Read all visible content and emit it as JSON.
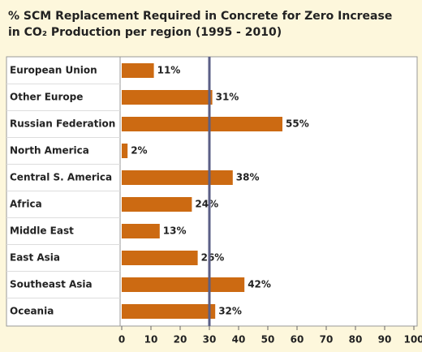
{
  "chart_data": {
    "type": "bar",
    "orientation": "horizontal",
    "title": [
      "% SCM Replacement Required in Concrete for Zero Increase",
      "in CO₂ Production per region (1995 - 2010)"
    ],
    "categories": [
      "European Union",
      "Other Europe",
      "Russian Federation",
      "North America",
      "Central S. America",
      "Africa",
      "Middle East",
      "East Asia",
      "Southeast Asia",
      "Oceania"
    ],
    "values": [
      11,
      31,
      55,
      2,
      38,
      24,
      13,
      26,
      42,
      32
    ],
    "value_labels": [
      "11%",
      "31%",
      "55%",
      "2%",
      "38%",
      "24%",
      "13%",
      "26%",
      "42%",
      "32%"
    ],
    "color": "#cc6a12",
    "xlim": [
      0,
      100
    ],
    "xticks": [
      0,
      10,
      20,
      30,
      40,
      50,
      60,
      70,
      80,
      90,
      100
    ],
    "reference_line": 30,
    "reference_color": "#5b5f86"
  }
}
